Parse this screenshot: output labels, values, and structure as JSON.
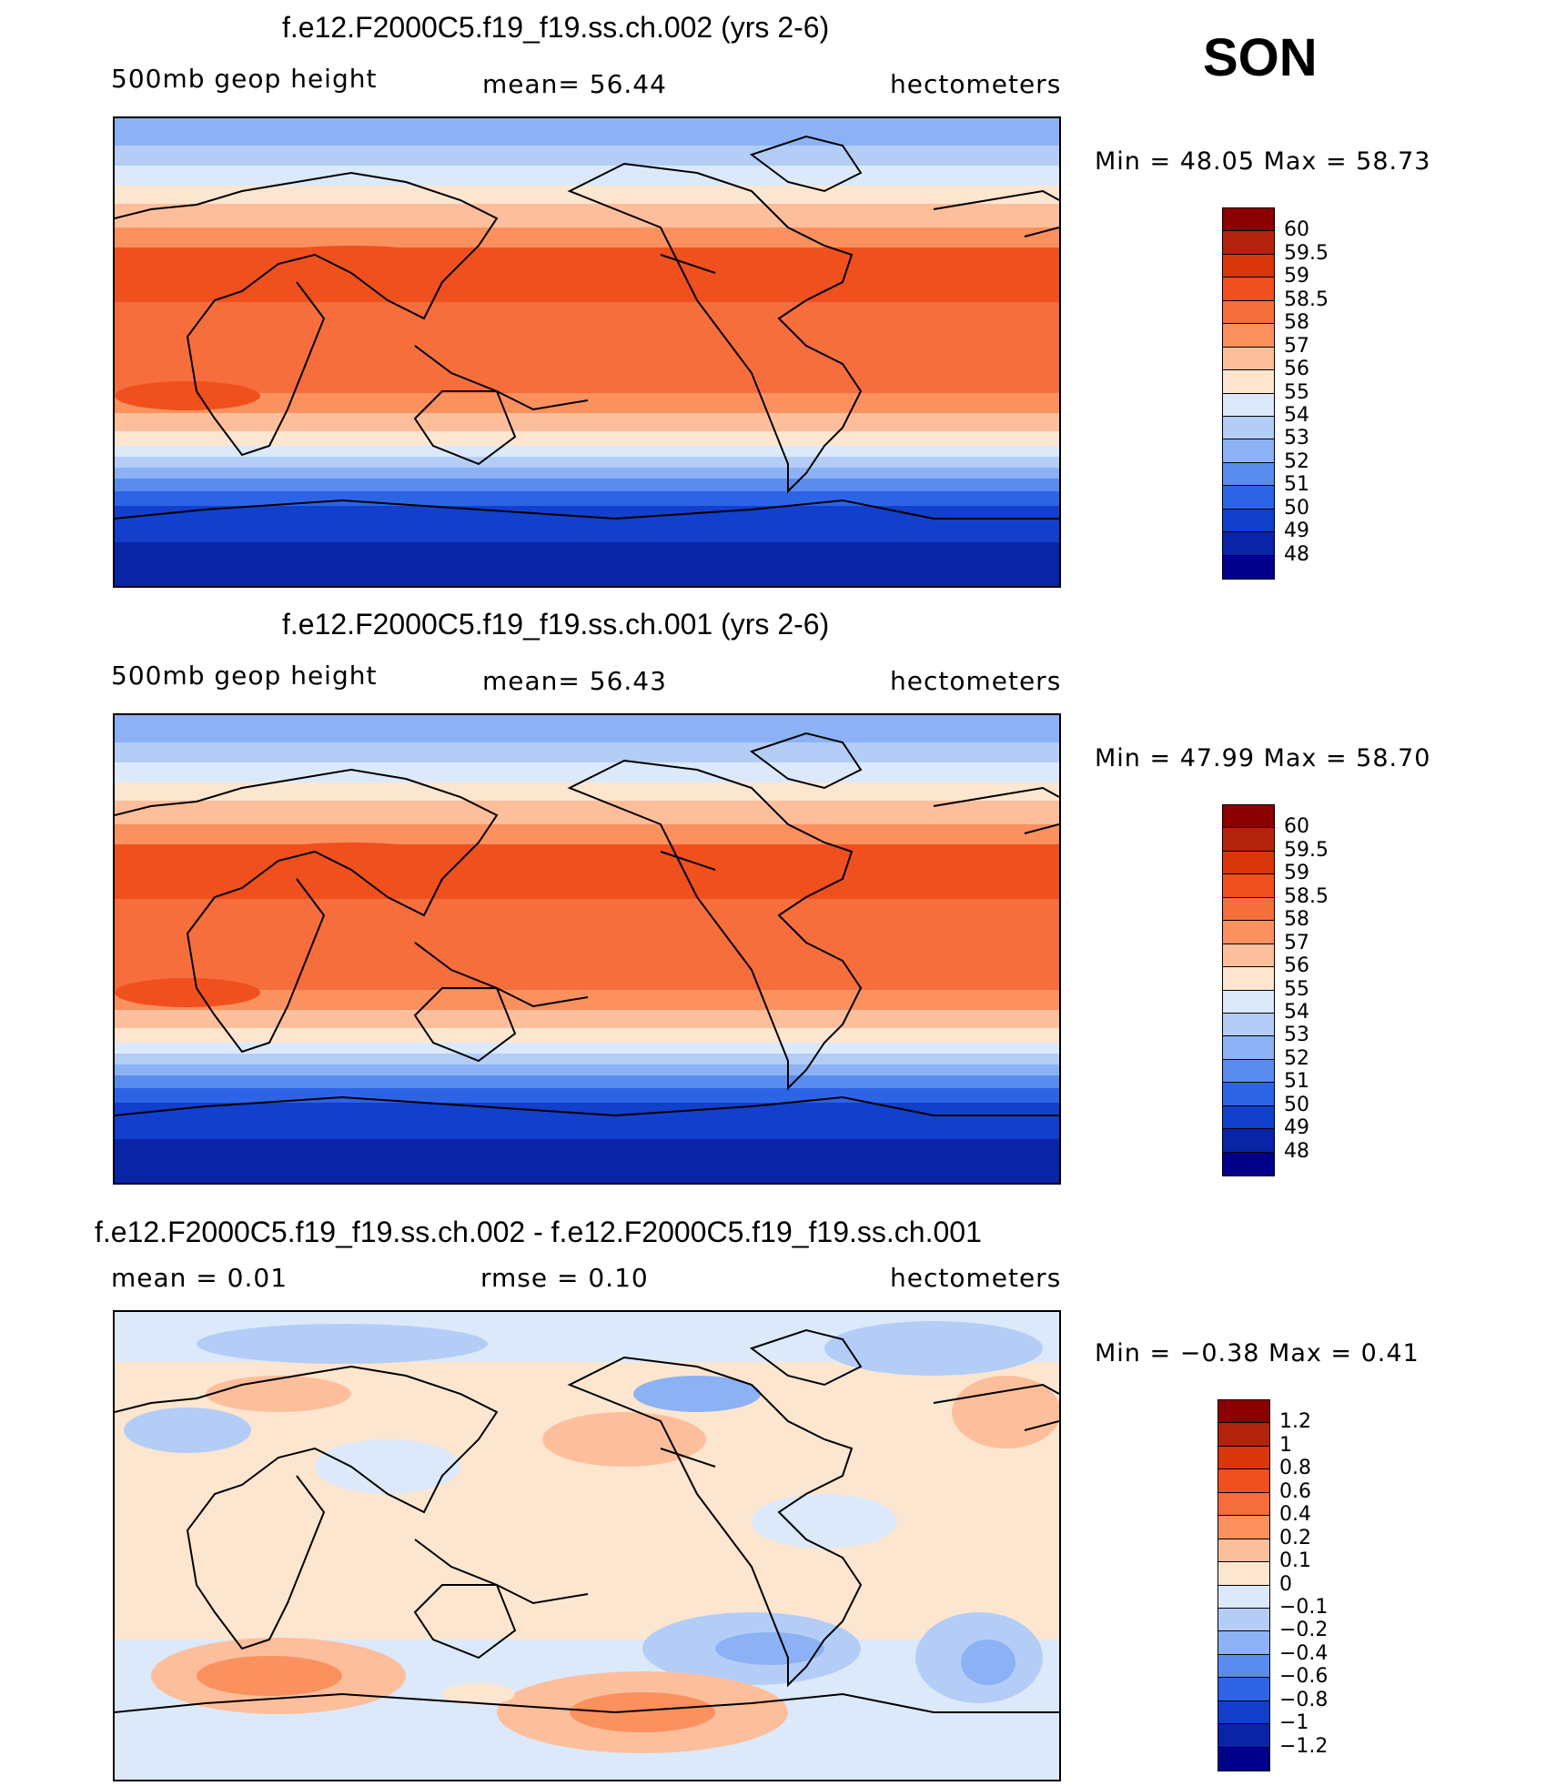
{
  "season": "SON",
  "panels": [
    {
      "title": "f.e12.F2000C5.f19_f19.ss.ch.002 (yrs 2-6)",
      "left_label": "500mb  geop  height",
      "center_label": "mean=   56.44",
      "units": "hectometers",
      "minmax": "Min  =    48.05  Max  =    58.73",
      "colorbar_labels": [
        "60",
        "59.5",
        "59",
        "58.5",
        "58",
        "57",
        "56",
        "55",
        "54",
        "53",
        "52",
        "51",
        "50",
        "49",
        "48"
      ],
      "colors": [
        "#8b0000",
        "#b3230c",
        "#d9360c",
        "#f0501e",
        "#f56e3c",
        "#fa915f",
        "#fdbe9c",
        "#fde6d0",
        "#dce9fa",
        "#b4cdf7",
        "#8cb2f5",
        "#5a8cf0",
        "#2d64e6",
        "#123fcc",
        "#0a24a8",
        "#00008b"
      ]
    },
    {
      "title": "f.e12.F2000C5.f19_f19.ss.ch.001 (yrs 2-6)",
      "left_label": "500mb  geop  height",
      "center_label": "mean=   56.43",
      "units": "hectometers",
      "minmax": "Min  =    47.99  Max  =    58.70",
      "colorbar_labels": [
        "60",
        "59.5",
        "59",
        "58.5",
        "58",
        "57",
        "56",
        "55",
        "54",
        "53",
        "52",
        "51",
        "50",
        "49",
        "48"
      ],
      "colors": [
        "#8b0000",
        "#b3230c",
        "#d9360c",
        "#f0501e",
        "#f56e3c",
        "#fa915f",
        "#fdbe9c",
        "#fde6d0",
        "#dce9fa",
        "#b4cdf7",
        "#8cb2f5",
        "#5a8cf0",
        "#2d64e6",
        "#123fcc",
        "#0a24a8",
        "#00008b"
      ]
    },
    {
      "title": "f.e12.F2000C5.f19_f19.ss.ch.002 - f.e12.F2000C5.f19_f19.ss.ch.001",
      "left_label": "mean  =     0.01",
      "center_label": "rmse  =     0.10",
      "units": "hectometers",
      "minmax": "Min  =   −0.38  Max  =     0.41",
      "colorbar_labels": [
        "1.2",
        "1",
        "0.8",
        "0.6",
        "0.4",
        "0.2",
        "0.1",
        "0",
        "−0.1",
        "−0.2",
        "−0.4",
        "−0.6",
        "−0.8",
        "−1",
        "−1.2"
      ],
      "colors": [
        "#8b0000",
        "#b3230c",
        "#d9360c",
        "#f0501e",
        "#f56e3c",
        "#fa915f",
        "#fdbe9c",
        "#fde6d0",
        "#dce9fa",
        "#b4cdf7",
        "#8cb2f5",
        "#5a8cf0",
        "#2d64e6",
        "#123fcc",
        "#0a24a8",
        "#00008b"
      ]
    }
  ]
}
